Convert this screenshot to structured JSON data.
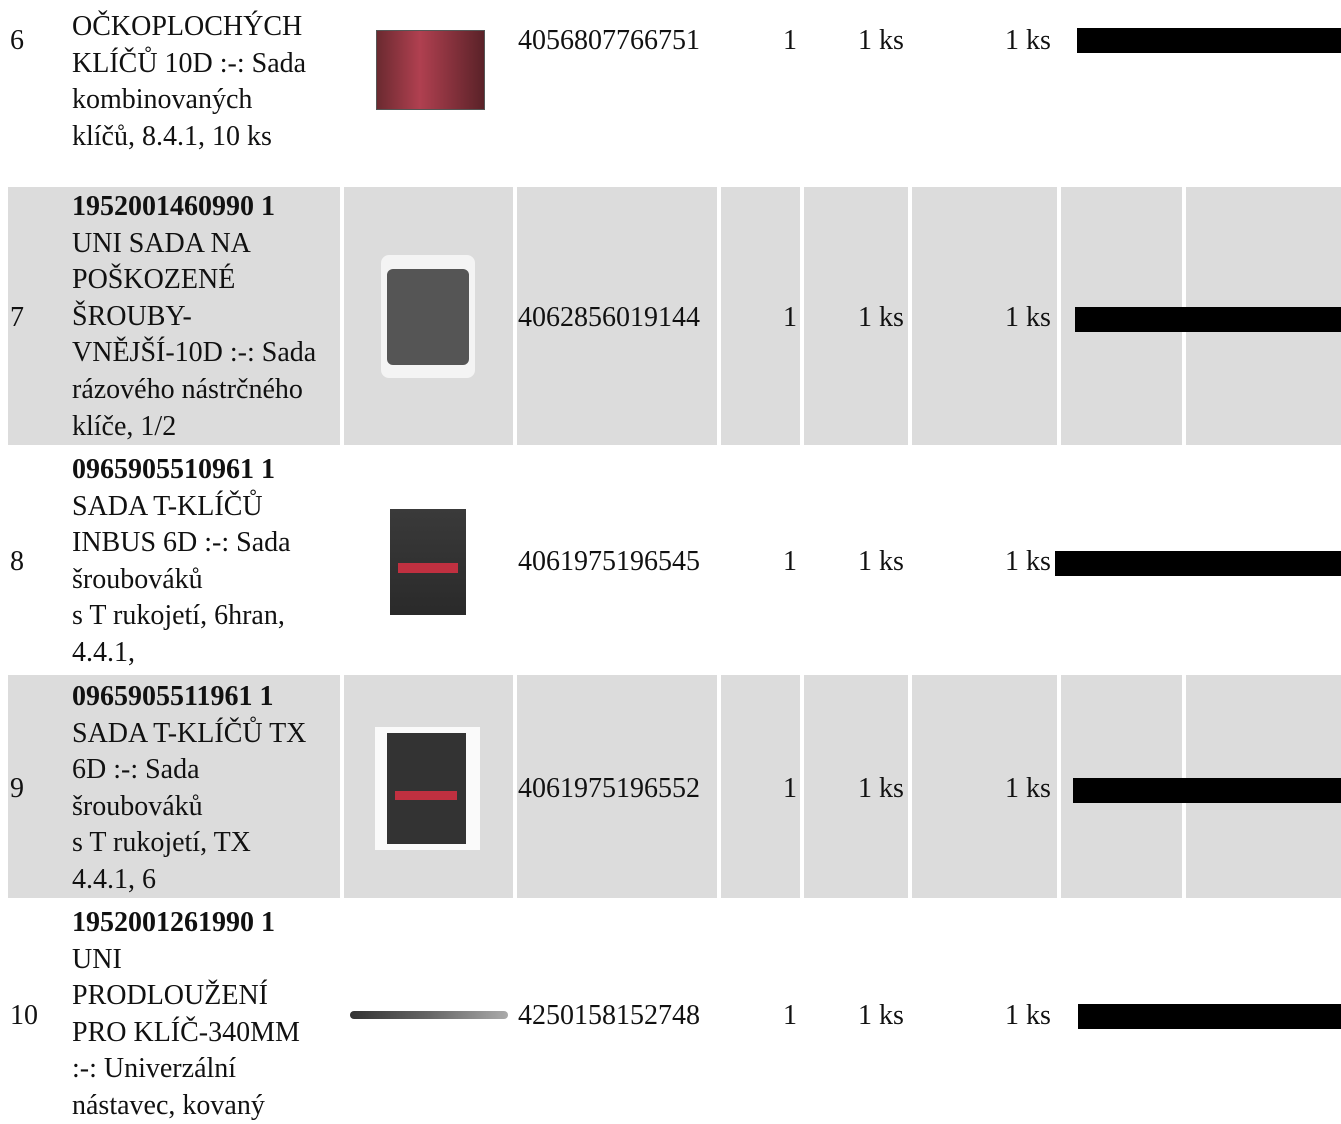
{
  "table": {
    "rows": [
      {
        "number": "6",
        "lines": [
          "OČKOPLOCHÝCH",
          "KLÍČŮ 10D :-: Sada",
          "kombinovaných",
          "klíčů, 8.4.1, 10 ks"
        ],
        "ean": "4056807766751",
        "quantity": "1",
        "unit": "1 ks",
        "delivered": "1 ks"
      },
      {
        "number": "7",
        "lines": [
          "1952001460990 1",
          "UNI SADA NA",
          "POŠKOZENÉ",
          "ŠROUBY-",
          "VNĚJŠÍ-10D :-: Sada",
          "rázového nástrčného",
          "klíče, 1/2"
        ],
        "ean": "4062856019144",
        "quantity": "1",
        "unit": "1 ks",
        "delivered": "1 ks"
      },
      {
        "number": "8",
        "lines": [
          "0965905510961 1",
          "SADA T-KLÍČŮ",
          "INBUS 6D :-: Sada",
          "šroubováků",
          "s T rukojetí, 6hran,",
          "4.4.1,"
        ],
        "ean": "4061975196545",
        "quantity": "1",
        "unit": "1 ks",
        "delivered": "1 ks"
      },
      {
        "number": "9",
        "lines": [
          "0965905511961 1",
          "SADA T-KLÍČŮ TX",
          "6D :-: Sada",
          "šroubováků",
          "s T rukojetí, TX",
          "4.4.1, 6"
        ],
        "ean": "4061975196552",
        "quantity": "1",
        "unit": "1 ks",
        "delivered": "1 ks"
      },
      {
        "number": "10",
        "lines": [
          "1952001261990 1",
          "UNI",
          "PRODLOUŽENÍ",
          "PRO KLÍČ-340MM",
          ":-: Univerzální",
          "nástavec, kovaný"
        ],
        "ean": "4250158152748",
        "quantity": "1",
        "unit": "1 ks",
        "delivered": "1 ks"
      }
    ]
  }
}
